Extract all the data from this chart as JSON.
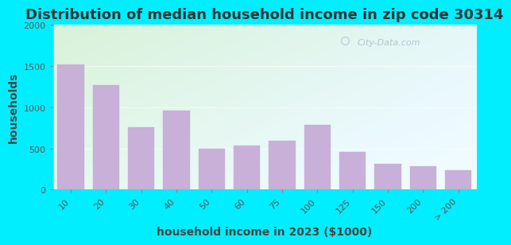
{
  "title": "Distribution of median household income in zip code 30314",
  "xlabel": "household income in 2023 ($1000)",
  "ylabel": "households",
  "categories": [
    "10",
    "20",
    "30",
    "40",
    "50",
    "60",
    "75",
    "100",
    "125",
    "150",
    "200",
    "> 200"
  ],
  "values": [
    1520,
    1270,
    760,
    960,
    500,
    540,
    590,
    790,
    460,
    315,
    285,
    235
  ],
  "ylim": [
    0,
    2000
  ],
  "yticks": [
    0,
    500,
    1000,
    1500,
    2000
  ],
  "bar_color": "#c8b0d8",
  "bar_edge_color": "#c8b0d8",
  "background_outer": "#00eeff",
  "bg_top_left": "#d8f0d8",
  "bg_bottom_right": "#e8f8f8",
  "title_color": "#333333",
  "label_color": "#444444",
  "tick_color": "#555555",
  "title_fontsize": 13,
  "axis_label_fontsize": 10,
  "tick_fontsize": 8,
  "watermark_text": "City-Data.com",
  "watermark_color": "#aabbcc"
}
